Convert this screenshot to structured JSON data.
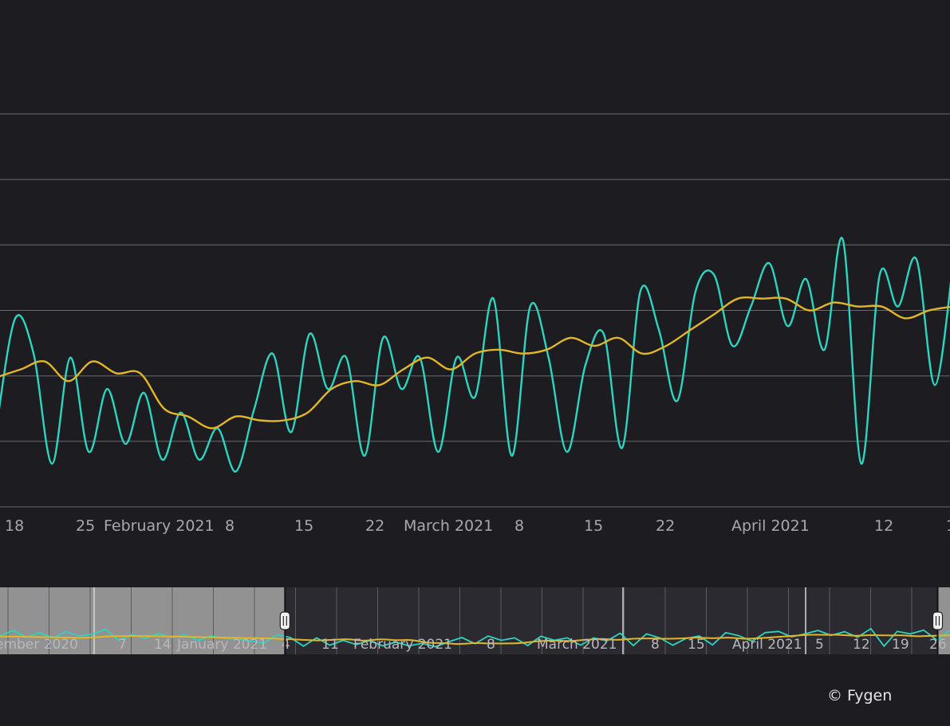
{
  "chart_data": {
    "type": "line",
    "grid": true,
    "yaxis_visible": false,
    "colors": {
      "background": "#1c1c21",
      "series_primary": "#2dd4bf",
      "series_average": "#e2b62a",
      "grid": "#6a6a70",
      "navigator_selected": "#929292",
      "navigator_unselected": "#2a2a30"
    },
    "x_tick_labels": [
      "18",
      "25",
      "February 2021",
      "8",
      "15",
      "22",
      "March 2021",
      "8",
      "15",
      "22",
      "April 2021",
      "12",
      "1"
    ],
    "series": [
      {
        "values": [
          21,
          48,
          39,
          11,
          38,
          14,
          30,
          16,
          29,
          12,
          24,
          12,
          20,
          9,
          25,
          39,
          19,
          44,
          30,
          38,
          13,
          43,
          30,
          38,
          14,
          38,
          28,
          53,
          13,
          51,
          38,
          14,
          36,
          44,
          15,
          55,
          45,
          27,
          55,
          59,
          41,
          51,
          62,
          46,
          58,
          40,
          68,
          11,
          59,
          51,
          63,
          31,
          62
        ]
      },
      {
        "values": [
          33,
          35,
          37,
          32,
          37,
          34,
          34,
          25,
          23,
          20,
          23,
          22,
          22,
          24,
          30,
          32,
          31,
          35,
          38,
          35,
          39,
          40,
          39,
          40,
          43,
          41,
          43,
          39,
          41,
          45,
          49,
          53,
          53,
          53,
          50,
          52,
          51,
          51,
          48,
          50,
          51
        ]
      }
    ],
    "navigator": {
      "tick_labels": [
        "ember 2020",
        "7",
        "14",
        "January 2021",
        "4",
        "11",
        "February 2021",
        "8",
        "March 2021",
        "8",
        "15",
        "April 2021",
        "5",
        "12",
        "19",
        "26"
      ],
      "selection_start_fraction": 0.3,
      "selection_end_fraction": 0.987
    }
  },
  "credit": "© Fygen"
}
